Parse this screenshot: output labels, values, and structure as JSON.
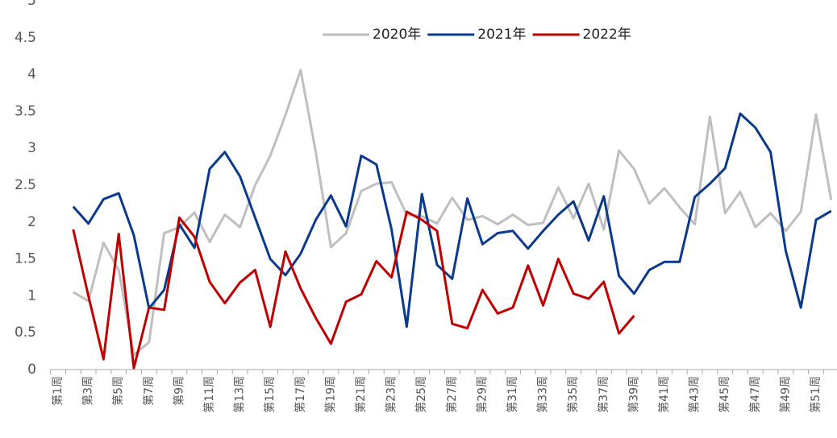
{
  "chart_data": {
    "type": "line",
    "categories": [
      "第1周",
      null,
      "第3周",
      null,
      "第5周",
      null,
      "第7周",
      null,
      "第9周",
      null,
      "第11周",
      null,
      "第13周",
      null,
      "第15周",
      null,
      "第17周",
      null,
      "第19周",
      null,
      "第21周",
      null,
      "第23周",
      null,
      "第25周",
      null,
      "第27周",
      null,
      "第29周",
      null,
      "第31周",
      null,
      "第33周",
      null,
      "第35周",
      null,
      "第37周",
      null,
      "第39周",
      null,
      "第41周",
      null,
      "第43周",
      null,
      "第45周",
      null,
      "第47周",
      null,
      "第49周",
      null,
      "第51周",
      null
    ],
    "series": [
      {
        "name": "2020年",
        "color": "#bfbfbf",
        "values": [
          null,
          1.05,
          0.93,
          1.72,
          1.35,
          0.2,
          0.37,
          1.85,
          1.93,
          2.13,
          1.73,
          2.1,
          1.93,
          2.5,
          2.9,
          3.45,
          4.06,
          2.95,
          1.66,
          1.85,
          2.42,
          2.52,
          2.54,
          2.1,
          2.08,
          1.98,
          2.33,
          2.03,
          2.08,
          1.97,
          2.1,
          1.96,
          1.99,
          2.47,
          2.05,
          2.52,
          1.9,
          2.97,
          2.72,
          2.25,
          2.46,
          2.2,
          1.97,
          3.43,
          2.12,
          2.41,
          1.93,
          2.12,
          1.88,
          2.14,
          3.46,
          2.3
        ]
      },
      {
        "name": "2021年",
        "color": "#0b3a8c",
        "values": [
          null,
          2.21,
          1.98,
          2.31,
          2.39,
          1.82,
          0.83,
          1.08,
          1.97,
          1.65,
          2.72,
          2.95,
          2.62,
          2.06,
          1.5,
          1.28,
          1.57,
          2.03,
          2.36,
          1.94,
          2.9,
          2.78,
          1.9,
          0.58,
          2.38,
          1.42,
          1.23,
          2.32,
          1.7,
          1.85,
          1.88,
          1.64,
          1.88,
          2.1,
          2.28,
          1.75,
          2.35,
          1.27,
          1.03,
          1.35,
          1.46,
          1.46,
          2.34,
          2.52,
          2.73,
          3.47,
          3.28,
          2.95,
          1.61,
          0.84,
          2.03,
          2.15
        ]
      },
      {
        "name": "2022年",
        "color": "#c00000",
        "values": [
          null,
          1.9,
          1.0,
          0.14,
          1.84,
          0.02,
          0.84,
          0.81,
          2.06,
          1.8,
          1.19,
          0.9,
          1.18,
          1.35,
          0.58,
          1.6,
          1.1,
          0.7,
          0.35,
          0.92,
          1.02,
          1.47,
          1.25,
          2.14,
          2.03,
          1.88,
          0.62,
          0.56,
          1.08,
          0.76,
          0.84,
          1.41,
          0.87,
          1.5,
          1.03,
          0.96,
          1.19,
          0.49,
          0.73,
          null,
          null,
          null,
          null,
          null,
          null,
          null,
          null,
          null,
          null,
          null,
          null,
          null
        ]
      }
    ],
    "ylim": [
      0,
      5
    ],
    "yticks": [
      0,
      0.5,
      1,
      1.5,
      2,
      2.5,
      3,
      3.5,
      4,
      4.5,
      5
    ],
    "grid": false,
    "legend": "top"
  }
}
